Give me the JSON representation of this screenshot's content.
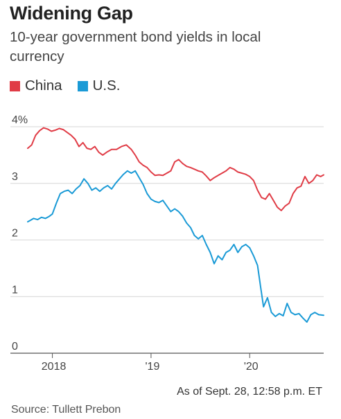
{
  "header": {
    "title": "Widening Gap",
    "subtitle": "10-year government bond yields in local currency"
  },
  "footer": {
    "note": "As of Sept. 28, 12:58 p.m. ET",
    "source": "Source: Tullett Prebon"
  },
  "chart_data": {
    "type": "line",
    "title": "Widening Gap",
    "subtitle": "10-year government bond yields in local currency",
    "xlabel": "",
    "ylabel": "",
    "grid": true,
    "legend_position": "top-left",
    "x_range": [
      2017.75,
      2020.75
    ],
    "ylim": [
      0,
      4
    ],
    "yticks": [
      {
        "value": 4,
        "label": "4%"
      },
      {
        "value": 3,
        "label": "3"
      },
      {
        "value": 2,
        "label": "2"
      },
      {
        "value": 1,
        "label": "1"
      },
      {
        "value": 0,
        "label": "0"
      }
    ],
    "xticks": [
      {
        "value": 2018,
        "label": "2018"
      },
      {
        "value": 2019,
        "label": "'19"
      },
      {
        "value": 2020,
        "label": "'20"
      }
    ],
    "series": [
      {
        "name": "China",
        "color": "#e03c46",
        "points": [
          [
            2017.75,
            3.62
          ],
          [
            2017.79,
            3.68
          ],
          [
            2017.83,
            3.85
          ],
          [
            2017.87,
            3.93
          ],
          [
            2017.91,
            3.98
          ],
          [
            2017.95,
            3.96
          ],
          [
            2017.99,
            3.92
          ],
          [
            2018.03,
            3.94
          ],
          [
            2018.07,
            3.97
          ],
          [
            2018.11,
            3.95
          ],
          [
            2018.15,
            3.9
          ],
          [
            2018.19,
            3.85
          ],
          [
            2018.23,
            3.78
          ],
          [
            2018.27,
            3.65
          ],
          [
            2018.31,
            3.72
          ],
          [
            2018.35,
            3.62
          ],
          [
            2018.39,
            3.6
          ],
          [
            2018.43,
            3.65
          ],
          [
            2018.47,
            3.55
          ],
          [
            2018.51,
            3.5
          ],
          [
            2018.55,
            3.55
          ],
          [
            2018.6,
            3.6
          ],
          [
            2018.65,
            3.6
          ],
          [
            2018.7,
            3.65
          ],
          [
            2018.75,
            3.68
          ],
          [
            2018.8,
            3.6
          ],
          [
            2018.84,
            3.5
          ],
          [
            2018.88,
            3.38
          ],
          [
            2018.92,
            3.32
          ],
          [
            2018.96,
            3.28
          ],
          [
            2019.0,
            3.2
          ],
          [
            2019.04,
            3.14
          ],
          [
            2019.08,
            3.15
          ],
          [
            2019.12,
            3.14
          ],
          [
            2019.16,
            3.18
          ],
          [
            2019.2,
            3.22
          ],
          [
            2019.24,
            3.38
          ],
          [
            2019.28,
            3.42
          ],
          [
            2019.32,
            3.35
          ],
          [
            2019.36,
            3.3
          ],
          [
            2019.4,
            3.28
          ],
          [
            2019.44,
            3.25
          ],
          [
            2019.48,
            3.22
          ],
          [
            2019.52,
            3.2
          ],
          [
            2019.56,
            3.13
          ],
          [
            2019.6,
            3.05
          ],
          [
            2019.64,
            3.1
          ],
          [
            2019.68,
            3.14
          ],
          [
            2019.72,
            3.18
          ],
          [
            2019.76,
            3.22
          ],
          [
            2019.8,
            3.28
          ],
          [
            2019.84,
            3.25
          ],
          [
            2019.88,
            3.2
          ],
          [
            2019.92,
            3.18
          ],
          [
            2019.96,
            3.16
          ],
          [
            2020.0,
            3.12
          ],
          [
            2020.04,
            3.05
          ],
          [
            2020.08,
            2.88
          ],
          [
            2020.12,
            2.75
          ],
          [
            2020.16,
            2.72
          ],
          [
            2020.2,
            2.82
          ],
          [
            2020.24,
            2.7
          ],
          [
            2020.28,
            2.58
          ],
          [
            2020.32,
            2.52
          ],
          [
            2020.36,
            2.6
          ],
          [
            2020.4,
            2.65
          ],
          [
            2020.44,
            2.82
          ],
          [
            2020.48,
            2.92
          ],
          [
            2020.52,
            2.95
          ],
          [
            2020.56,
            3.12
          ],
          [
            2020.6,
            3.0
          ],
          [
            2020.64,
            3.05
          ],
          [
            2020.68,
            3.15
          ],
          [
            2020.72,
            3.12
          ],
          [
            2020.75,
            3.15
          ]
        ]
      },
      {
        "name": "U.S.",
        "color": "#1a9ad6",
        "points": [
          [
            2017.75,
            2.32
          ],
          [
            2017.78,
            2.35
          ],
          [
            2017.81,
            2.38
          ],
          [
            2017.85,
            2.36
          ],
          [
            2017.89,
            2.4
          ],
          [
            2017.93,
            2.38
          ],
          [
            2017.97,
            2.42
          ],
          [
            2018.0,
            2.46
          ],
          [
            2018.04,
            2.65
          ],
          [
            2018.08,
            2.82
          ],
          [
            2018.12,
            2.86
          ],
          [
            2018.16,
            2.88
          ],
          [
            2018.2,
            2.82
          ],
          [
            2018.24,
            2.9
          ],
          [
            2018.28,
            2.96
          ],
          [
            2018.32,
            3.08
          ],
          [
            2018.36,
            3.0
          ],
          [
            2018.4,
            2.88
          ],
          [
            2018.44,
            2.92
          ],
          [
            2018.48,
            2.86
          ],
          [
            2018.52,
            2.92
          ],
          [
            2018.56,
            2.96
          ],
          [
            2018.6,
            2.9
          ],
          [
            2018.64,
            3.0
          ],
          [
            2018.68,
            3.08
          ],
          [
            2018.72,
            3.16
          ],
          [
            2018.76,
            3.22
          ],
          [
            2018.8,
            3.18
          ],
          [
            2018.84,
            3.22
          ],
          [
            2018.88,
            3.1
          ],
          [
            2018.92,
            2.98
          ],
          [
            2018.96,
            2.82
          ],
          [
            2019.0,
            2.72
          ],
          [
            2019.04,
            2.68
          ],
          [
            2019.08,
            2.66
          ],
          [
            2019.12,
            2.7
          ],
          [
            2019.16,
            2.6
          ],
          [
            2019.2,
            2.5
          ],
          [
            2019.24,
            2.55
          ],
          [
            2019.28,
            2.5
          ],
          [
            2019.32,
            2.42
          ],
          [
            2019.36,
            2.3
          ],
          [
            2019.4,
            2.22
          ],
          [
            2019.44,
            2.08
          ],
          [
            2019.48,
            2.02
          ],
          [
            2019.52,
            2.08
          ],
          [
            2019.56,
            1.92
          ],
          [
            2019.6,
            1.78
          ],
          [
            2019.64,
            1.58
          ],
          [
            2019.68,
            1.72
          ],
          [
            2019.72,
            1.65
          ],
          [
            2019.76,
            1.78
          ],
          [
            2019.8,
            1.82
          ],
          [
            2019.84,
            1.92
          ],
          [
            2019.88,
            1.78
          ],
          [
            2019.92,
            1.88
          ],
          [
            2019.96,
            1.92
          ],
          [
            2020.0,
            1.86
          ],
          [
            2020.04,
            1.72
          ],
          [
            2020.08,
            1.55
          ],
          [
            2020.11,
            1.18
          ],
          [
            2020.14,
            0.82
          ],
          [
            2020.18,
            0.98
          ],
          [
            2020.22,
            0.72
          ],
          [
            2020.26,
            0.65
          ],
          [
            2020.3,
            0.7
          ],
          [
            2020.34,
            0.66
          ],
          [
            2020.38,
            0.88
          ],
          [
            2020.42,
            0.72
          ],
          [
            2020.46,
            0.68
          ],
          [
            2020.5,
            0.7
          ],
          [
            2020.54,
            0.62
          ],
          [
            2020.58,
            0.55
          ],
          [
            2020.62,
            0.68
          ],
          [
            2020.66,
            0.72
          ],
          [
            2020.7,
            0.68
          ],
          [
            2020.75,
            0.67
          ]
        ]
      }
    ]
  }
}
